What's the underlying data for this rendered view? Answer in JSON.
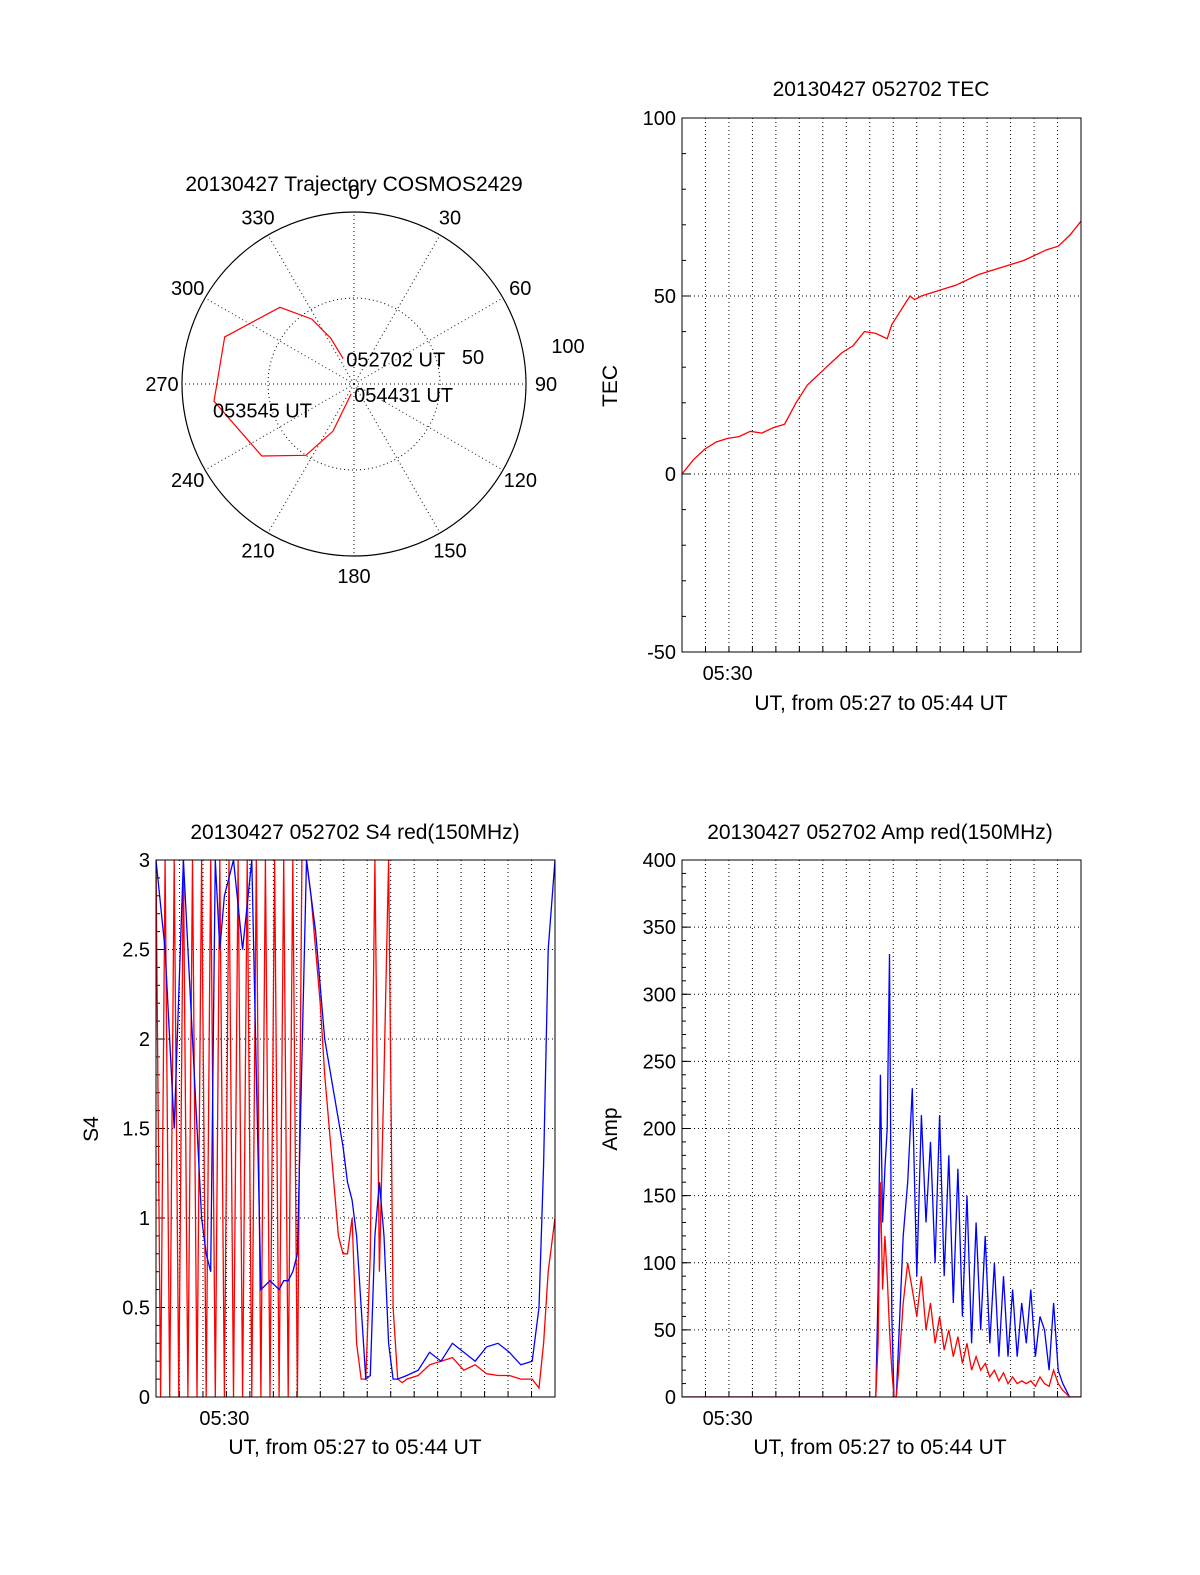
{
  "chart_data": [
    {
      "type": "polar",
      "title": "20130427 Trajectory COSMOS2429",
      "angle_labels": [
        "0",
        "30",
        "60",
        "90",
        "120",
        "150",
        "180",
        "210",
        "240",
        "270",
        "300",
        "330"
      ],
      "radial_labels": [
        "50",
        "100"
      ],
      "series": [
        {
          "color": "#ff0000",
          "points": [
            {
              "az": 337,
              "el": 0.16
            },
            {
              "az": 333,
              "el": 0.3
            },
            {
              "az": 327,
              "el": 0.45
            },
            {
              "az": 316,
              "el": 0.62
            },
            {
              "az": 290,
              "el": 0.8
            },
            {
              "az": 263,
              "el": 0.82
            },
            {
              "az": 232,
              "el": 0.68
            },
            {
              "az": 214,
              "el": 0.5
            },
            {
              "az": 204,
              "el": 0.3
            },
            {
              "az": 196,
              "el": 0.06
            }
          ]
        }
      ],
      "annotations": [
        {
          "text": "052702 UT",
          "az": 337,
          "el": 0.16
        },
        {
          "text": "053545 UT",
          "az": 260,
          "el": 0.85
        },
        {
          "text": "054431 UT",
          "az": 196,
          "el": 0.06
        }
      ]
    },
    {
      "type": "line",
      "title": "20130427 052702 TEC",
      "ylabel": "TEC",
      "xlabel": "UT, from 05:27 to 05:44 UT",
      "xlim": [
        0,
        17.5
      ],
      "ylim": [
        -50,
        100
      ],
      "yticks": [
        "-50",
        "0",
        "50",
        "100"
      ],
      "xtick_labels": [
        {
          "x": 2,
          "label": "05:30"
        }
      ],
      "series": [
        {
          "color": "#ff0000",
          "x": [
            0,
            0.5,
            1,
            1.5,
            2,
            2.5,
            3,
            3.5,
            4,
            4.5,
            5,
            5.5,
            6,
            6.5,
            7,
            7.5,
            8,
            8.5,
            9,
            9.2,
            9.5,
            10,
            10.2,
            10.5,
            11,
            12,
            13,
            14,
            15,
            16,
            16.5,
            17,
            17.5
          ],
          "y": [
            0,
            4,
            7,
            9,
            10,
            10.5,
            12,
            11.5,
            13,
            14,
            20,
            25,
            28,
            31,
            34,
            36,
            40,
            39.5,
            38,
            42,
            45,
            50,
            49,
            50,
            51,
            53,
            56,
            58,
            60,
            63,
            64,
            67,
            71
          ]
        }
      ]
    },
    {
      "type": "line",
      "title": "20130427 052702 S4 red(150MHz)",
      "ylabel": "S4",
      "xlabel": "UT, from 05:27 to 05:44 UT",
      "xlim": [
        0,
        17.5
      ],
      "ylim": [
        0,
        3
      ],
      "yticks": [
        "0",
        "0.5",
        "1",
        "1.5",
        "2",
        "2.5",
        "3"
      ],
      "xtick_labels": [
        {
          "x": 3,
          "label": "05:30"
        }
      ],
      "series": [
        {
          "name": "",
          "color": "#ff0000",
          "x": [
            0,
            0.2,
            0.4,
            0.6,
            0.8,
            1.0,
            1.2,
            1.4,
            1.6,
            1.8,
            2.0,
            2.2,
            2.4,
            2.6,
            2.8,
            3.0,
            3.2,
            3.4,
            3.6,
            3.8,
            4.0,
            4.2,
            4.4,
            4.6,
            4.8,
            5.0,
            5.2,
            5.4,
            5.6,
            5.8,
            6.0,
            6.2,
            6.4,
            6.6,
            6.8,
            7.0,
            7.2,
            7.4,
            7.6,
            7.8,
            8.0,
            8.2,
            8.4,
            8.6,
            8.8,
            9.0,
            9.2,
            9.4,
            9.6,
            9.8,
            10.0,
            10.2,
            10.4,
            10.6,
            10.8,
            11.0,
            11.5,
            12.0,
            12.5,
            13.0,
            13.5,
            14.0,
            14.5,
            15.0,
            15.5,
            16.0,
            16.5,
            16.8,
            17.0,
            17.2,
            17.5
          ],
          "y": [
            3,
            0,
            3,
            0,
            3,
            0,
            3,
            0,
            3,
            0,
            3,
            0,
            3,
            0,
            3,
            0,
            3,
            0,
            3,
            0,
            3,
            0,
            3,
            0,
            3,
            0,
            3,
            0,
            3,
            0,
            3,
            0,
            3,
            3,
            2.8,
            2.5,
            2.2,
            1.8,
            1.5,
            1.2,
            0.9,
            0.8,
            0.8,
            1.0,
            0.3,
            0.1,
            0.1,
            0.8,
            3,
            0.7,
            1.8,
            3,
            0.5,
            0.1,
            0.08,
            0.1,
            0.12,
            0.18,
            0.2,
            0.22,
            0.15,
            0.18,
            0.13,
            0.12,
            0.12,
            0.1,
            0.1,
            0.05,
            0.3,
            0.7,
            1.0
          ]
        },
        {
          "name": "",
          "color": "#0000ff",
          "x": [
            0,
            0.4,
            0.8,
            1.2,
            1.6,
            2.0,
            2.2,
            2.4,
            2.6,
            2.8,
            3.0,
            3.4,
            3.8,
            4.2,
            4.6,
            5.0,
            5.4,
            5.6,
            5.8,
            6.0,
            6.2,
            6.6,
            7.0,
            7.4,
            7.8,
            8.2,
            8.4,
            8.6,
            8.8,
            9.0,
            9.2,
            9.4,
            9.6,
            9.8,
            10.0,
            10.2,
            10.4,
            10.6,
            11.0,
            11.5,
            12.0,
            12.5,
            13.0,
            13.5,
            14.0,
            14.5,
            15.0,
            15.5,
            16.0,
            16.5,
            16.8,
            17.0,
            17.2,
            17.5
          ],
          "y": [
            3,
            2.5,
            1.5,
            3,
            2.0,
            1.0,
            0.8,
            0.7,
            3,
            2.5,
            2.8,
            3,
            2.5,
            3,
            0.6,
            0.65,
            0.6,
            0.65,
            0.65,
            0.7,
            0.8,
            3,
            2.6,
            2.0,
            1.7,
            1.4,
            1.2,
            1.1,
            0.9,
            0.5,
            0.1,
            0.12,
            0.9,
            1.2,
            0.9,
            0.3,
            0.1,
            0.1,
            0.12,
            0.15,
            0.25,
            0.2,
            0.3,
            0.25,
            0.2,
            0.28,
            0.3,
            0.25,
            0.18,
            0.2,
            0.5,
            1.3,
            2.5,
            3
          ]
        }
      ]
    },
    {
      "type": "line",
      "title": "20130427 052702 Amp red(150MHz)",
      "ylabel": "Amp",
      "xlabel": "UT, from 05:27 to 05:44 UT",
      "xlim": [
        0,
        17.5
      ],
      "ylim": [
        0,
        400
      ],
      "yticks": [
        "0",
        "50",
        "100",
        "150",
        "200",
        "250",
        "300",
        "350",
        "400"
      ],
      "xtick_labels": [
        {
          "x": 2,
          "label": "05:30"
        }
      ],
      "series": [
        {
          "color": "#0000ff",
          "x": [
            0,
            8.5,
            8.6,
            8.7,
            8.8,
            8.9,
            9.0,
            9.1,
            9.2,
            9.3,
            9.4,
            9.5,
            9.7,
            9.9,
            10.1,
            10.3,
            10.5,
            10.7,
            10.9,
            11.1,
            11.3,
            11.5,
            11.7,
            11.9,
            12.1,
            12.3,
            12.5,
            12.7,
            12.9,
            13.1,
            13.3,
            13.5,
            13.7,
            13.9,
            14.1,
            14.3,
            14.5,
            14.7,
            14.9,
            15.1,
            15.3,
            15.5,
            15.7,
            15.9,
            16.1,
            16.3,
            16.5,
            16.7,
            17.0,
            17.5
          ],
          "y": [
            0,
            0,
            80,
            240,
            130,
            170,
            200,
            330,
            60,
            0,
            0,
            40,
            120,
            160,
            230,
            90,
            210,
            130,
            190,
            100,
            210,
            90,
            180,
            70,
            170,
            60,
            150,
            40,
            130,
            50,
            120,
            40,
            100,
            30,
            90,
            30,
            80,
            30,
            70,
            40,
            80,
            30,
            60,
            50,
            20,
            70,
            20,
            10,
            0,
            0
          ]
        },
        {
          "color": "#ff0000",
          "x": [
            0,
            8.5,
            8.6,
            8.7,
            8.8,
            8.9,
            9.0,
            9.1,
            9.2,
            9.3,
            9.4,
            9.5,
            9.7,
            9.9,
            10.1,
            10.3,
            10.5,
            10.7,
            10.9,
            11.1,
            11.3,
            11.5,
            11.7,
            11.9,
            12.1,
            12.3,
            12.5,
            12.7,
            12.9,
            13.1,
            13.3,
            13.5,
            13.7,
            13.9,
            14.1,
            14.3,
            14.5,
            14.7,
            14.9,
            15.1,
            15.3,
            15.5,
            15.7,
            15.9,
            16.1,
            16.3,
            16.5,
            16.7,
            17.0,
            17.5
          ],
          "y": [
            0,
            0,
            40,
            160,
            80,
            120,
            90,
            50,
            20,
            0,
            0,
            20,
            70,
            100,
            80,
            60,
            90,
            50,
            70,
            40,
            60,
            35,
            50,
            30,
            45,
            25,
            40,
            20,
            30,
            20,
            25,
            15,
            20,
            12,
            18,
            10,
            15,
            10,
            12,
            10,
            12,
            8,
            15,
            10,
            8,
            20,
            10,
            5,
            0,
            0
          ]
        }
      ]
    }
  ]
}
